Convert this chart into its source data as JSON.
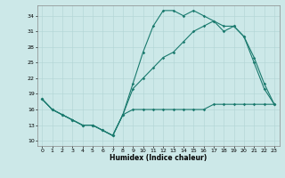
{
  "xlabel": "Humidex (Indice chaleur)",
  "bg_color": "#cce8e8",
  "line_color": "#1a7a6e",
  "xlim": [
    -0.5,
    23.5
  ],
  "ylim": [
    9,
    36
  ],
  "yticks": [
    10,
    13,
    16,
    19,
    22,
    25,
    28,
    31,
    34
  ],
  "xticks": [
    0,
    1,
    2,
    3,
    4,
    5,
    6,
    7,
    8,
    9,
    10,
    11,
    12,
    13,
    14,
    15,
    16,
    17,
    18,
    19,
    20,
    21,
    22,
    23
  ],
  "line1_x": [
    0,
    1,
    2,
    3,
    4,
    5,
    6,
    7,
    8,
    9,
    10,
    11,
    12,
    13,
    14,
    15,
    16,
    17,
    18,
    19,
    20,
    21,
    22,
    23
  ],
  "line1_y": [
    18,
    16,
    15,
    14,
    13,
    13,
    12,
    11,
    15,
    16,
    16,
    16,
    16,
    16,
    16,
    16,
    16,
    17,
    17,
    17,
    17,
    17,
    17,
    17
  ],
  "line2_x": [
    0,
    1,
    2,
    3,
    4,
    5,
    6,
    7,
    8,
    9,
    10,
    11,
    12,
    13,
    14,
    15,
    16,
    17,
    18,
    19,
    20,
    21,
    22,
    23
  ],
  "line2_y": [
    18,
    16,
    15,
    14,
    13,
    13,
    12,
    11,
    15,
    21,
    27,
    32,
    35,
    35,
    34,
    35,
    34,
    33,
    32,
    32,
    30,
    25,
    20,
    17
  ],
  "line3_x": [
    0,
    1,
    2,
    3,
    4,
    5,
    6,
    7,
    8,
    9,
    10,
    11,
    12,
    13,
    14,
    15,
    16,
    17,
    18,
    19,
    20,
    21,
    22,
    23
  ],
  "line3_y": [
    18,
    16,
    15,
    14,
    13,
    13,
    12,
    11,
    15,
    20,
    22,
    24,
    26,
    27,
    29,
    31,
    32,
    33,
    31,
    32,
    30,
    26,
    21,
    17
  ]
}
